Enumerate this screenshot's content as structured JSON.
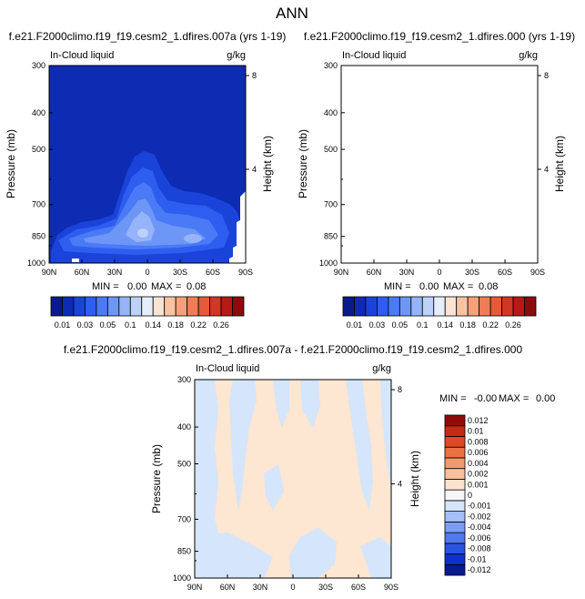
{
  "figure": {
    "title": "ANN",
    "field_label": "In-Cloud liquid",
    "units": "g/kg",
    "left_y_label": "Pressure (mb)",
    "right_y_label": "Height (km)"
  },
  "colors": {
    "background": "#ffffff",
    "abs_bar": [
      "#0a1a8c",
      "#0d2bb3",
      "#1a44d9",
      "#2e5ef0",
      "#4a7af5",
      "#6e96f7",
      "#95b4f9",
      "#bcd2fb",
      "#e6eefb",
      "#fbe3d2",
      "#f9c3a3",
      "#f5a07a",
      "#ef7d57",
      "#e45a3a",
      "#d23624",
      "#b51a14",
      "#8a0c0c"
    ],
    "diff_bar": [
      "#0a1a8c",
      "#1030c8",
      "#2b52e0",
      "#5079ec",
      "#7b9ef3",
      "#a5c0f7",
      "#d5e5fb",
      "#f6f6f6",
      "#fde3cf",
      "#f9c09b",
      "#f39a6c",
      "#ea7242",
      "#dd4a24",
      "#c52a12",
      "#8f0c0c"
    ]
  },
  "chart_data": [
    {
      "type": "heatmap",
      "subtitle": "f.e21.F2000climo.f19_f19.cesm2_1.dfires.007a (yrs 1-19)",
      "x_ticks": [
        "90N",
        "60N",
        "30N",
        "0",
        "30S",
        "60S",
        "90S"
      ],
      "y_ticks": [
        "300",
        "400",
        "500",
        "700",
        "850",
        "1000"
      ],
      "y2_ticks": [
        "8",
        "4"
      ],
      "x_range": [
        90,
        -90
      ],
      "y_range": [
        1000,
        300
      ],
      "y_scale": "log",
      "min_label": "MIN = ",
      "min_value": "0.00",
      "max_label": "MAX = ",
      "max_value": "0.08",
      "colorbar_ticks": [
        "0.01",
        "0.03",
        "0.05",
        "0.1",
        "0.14",
        "0.18",
        "0.22",
        "0.26"
      ]
    },
    {
      "type": "heatmap",
      "subtitle": "f.e21.F2000climo.f19_f19.cesm2_1.dfires.000 (yrs 1-19)",
      "x_ticks": [
        "90N",
        "60N",
        "30N",
        "0",
        "30S",
        "60S",
        "90S"
      ],
      "y_ticks": [
        "300",
        "400",
        "500",
        "700",
        "850",
        "1000"
      ],
      "y2_ticks": [
        "8",
        "4"
      ],
      "x_range": [
        90,
        -90
      ],
      "y_range": [
        1000,
        300
      ],
      "y_scale": "log",
      "min_label": "MIN = ",
      "min_value": "0.00",
      "max_label": "MAX = ",
      "max_value": "0.08",
      "colorbar_ticks": [
        "0.01",
        "0.03",
        "0.05",
        "0.1",
        "0.14",
        "0.18",
        "0.22",
        "0.26"
      ]
    },
    {
      "type": "heatmap",
      "subtitle": "f.e21.F2000climo.f19_f19.cesm2_1.dfires.007a - f.e21.F2000climo.f19_f19.cesm2_1.dfires.000",
      "x_ticks": [
        "90N",
        "60N",
        "30N",
        "0",
        "30S",
        "60S",
        "90S"
      ],
      "y_ticks": [
        "300",
        "400",
        "500",
        "700",
        "850",
        "1000"
      ],
      "y2_ticks": [
        "8",
        "4"
      ],
      "x_range": [
        90,
        -90
      ],
      "y_range": [
        1000,
        300
      ],
      "y_scale": "log",
      "min_label": "MIN = ",
      "min_value": "-0.00",
      "max_label": "MAX = ",
      "max_value": "0.00",
      "colorbar_ticks": [
        "0.012",
        "0.01",
        "0.008",
        "0.006",
        "0.004",
        "0.002",
        "0.001",
        "0",
        "-0.001",
        "-0.002",
        "-0.004",
        "-0.006",
        "-0.008",
        "-0.01",
        "-0.012"
      ]
    }
  ]
}
